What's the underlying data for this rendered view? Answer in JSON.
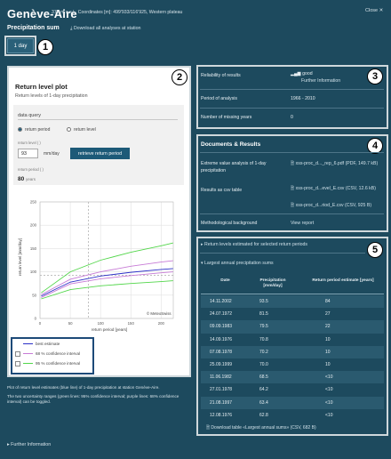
{
  "header": {
    "title": "Genève-Aire",
    "subtitle": "376 m a.s.l., Coordinates [m]: 499'933/116'925, Western plateau",
    "close_label": "Close ✕"
  },
  "section": {
    "title": "Precipitation sum",
    "download_all_label": "Download all analyses at station"
  },
  "duration_tab": {
    "label": "1 day"
  },
  "callouts": [
    "1",
    "2",
    "3",
    "4",
    "5"
  ],
  "plot_panel": {
    "title": "Return level plot",
    "subtitle": "Return levels of 1-day precipitation",
    "data_query_label": "data query",
    "radio_options": [
      {
        "label": "return period",
        "selected": true
      },
      {
        "label": "return level",
        "selected": false
      }
    ],
    "return_level_label": "return level (          )",
    "input_value": "93",
    "input_unit": "mm/day",
    "retrieve_button": "retrieve return period",
    "return_period_label": "return period (          )",
    "result_value": "80",
    "result_unit": "years"
  },
  "chart_data": {
    "type": "line",
    "xlabel": "return period [years]",
    "ylabel": "return level [mm/day]",
    "x_ticks": [
      0,
      50,
      100,
      150,
      200
    ],
    "y_ticks": [
      0,
      50,
      100,
      150,
      200,
      250
    ],
    "xlim": [
      0,
      220
    ],
    "ylim": [
      0,
      250
    ],
    "copyright": "© MeteoSwiss",
    "query_marker": {
      "x": 80,
      "y": 93
    },
    "series": [
      {
        "name": "best estimate",
        "color": "#2b2fc7",
        "x": [
          2,
          50,
          100,
          150,
          200,
          220
        ],
        "y": [
          48,
          78,
          91,
          99,
          105,
          107
        ]
      },
      {
        "name": "68 % confidence interval",
        "color": "#c77bd6",
        "x": [
          2,
          50,
          100,
          150,
          200,
          220
        ],
        "y": [
          45,
          74,
          85,
          92,
          98,
          100
        ]
      },
      {
        "name": "68 % confidence interval upper",
        "color": "#c77bd6",
        "x": [
          2,
          50,
          100,
          150,
          200,
          220
        ],
        "y": [
          51,
          84,
          100,
          112,
          121,
          124
        ]
      },
      {
        "name": "95 % confidence interval",
        "color": "#52d64a",
        "x": [
          2,
          50,
          100,
          150,
          200,
          220
        ],
        "y": [
          42,
          62,
          70,
          75,
          79,
          81
        ]
      },
      {
        "name": "95 % confidence interval upper",
        "color": "#52d64a",
        "x": [
          2,
          50,
          100,
          150,
          200,
          220
        ],
        "y": [
          55,
          100,
          125,
          142,
          156,
          162
        ]
      }
    ]
  },
  "legend": [
    {
      "label": "best estimate",
      "color": "#2b2fc7",
      "checkbox": false
    },
    {
      "label": "68 % confidence interval",
      "color": "#c77bd6",
      "checkbox": true
    },
    {
      "label": "95 % confidence interval",
      "color": "#52d64a",
      "checkbox": true
    }
  ],
  "caption": {
    "line1": "Plot of return level estimates (blue line) of 1-day precipitation at station Genève-Aire.",
    "line2": "The two uncertainty ranges (green lines: 95% confidence interval; purple lines: 68% confidence interval) can be toggled."
  },
  "further_information": "Further Information",
  "info_panel": {
    "reliability_label": "Reliability of results",
    "reliability_value": "good",
    "reliability_link": "Further Information",
    "period_label": "Period of analysis",
    "period_value": "1966 - 2010",
    "missing_label": "Number of missing years",
    "missing_value": "0"
  },
  "docs_panel": {
    "title": "Documents & Results",
    "evaluation_label": "Extreme value analysis of 1-day precipitation",
    "evaluation_file": "xss-proc_d..._rep_6.pdf (PDF, 149.7 kB)",
    "csv_label": "Results as csv table",
    "csv_files": [
      "xss-proc_d...evel_E.csv (CSV, 12.6 kB)",
      "xss-proc_d...riod_E.csv (CSV, 925 B)"
    ],
    "method_label": "Methodological background",
    "method_link": "View report"
  },
  "table_panel": {
    "collapsed_label": "Return levels estimated for selected return periods",
    "expanded_label": "Largest annual precipitation sums",
    "columns": [
      "Date",
      "Precipitation [mm/day]",
      "Return period estimate [years]"
    ],
    "rows": [
      [
        "14.11.2002",
        "93.5",
        "84"
      ],
      [
        "24.07.1972",
        "81.5",
        "27"
      ],
      [
        "09.09.1983",
        "79.5",
        "22"
      ],
      [
        "14.09.1976",
        "70.8",
        "10"
      ],
      [
        "07.08.1978",
        "70.2",
        "10"
      ],
      [
        "25.09.1999",
        "70.0",
        "10"
      ],
      [
        "11.06.1982",
        "68.5",
        "<10"
      ],
      [
        "27.01.1978",
        "64.2",
        "<10"
      ],
      [
        "21.08.1997",
        "63.4",
        "<10"
      ],
      [
        "12.08.1976",
        "62.8",
        "<10"
      ]
    ],
    "download_label": "Download table «Largest annual sums» (CSV, 682 B)"
  }
}
